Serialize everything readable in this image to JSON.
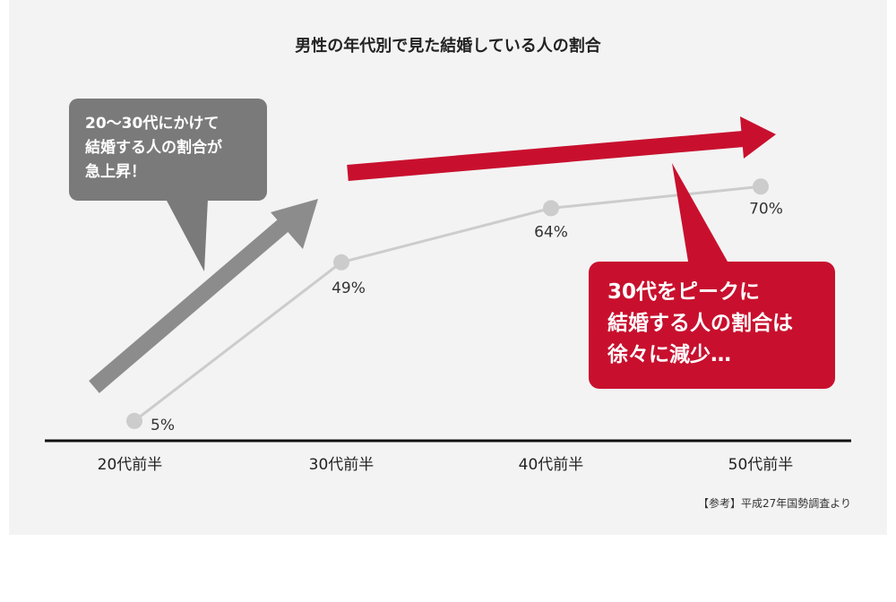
{
  "chart_data": {
    "type": "line",
    "title": "男性の年代別で見た結婚している人の割合",
    "categories": [
      "20代前半",
      "30代前半",
      "40代前半",
      "50代前半"
    ],
    "values": [
      5,
      49,
      64,
      70
    ],
    "data_labels": [
      "5%",
      "49%",
      "64%",
      "70%"
    ],
    "ylim": [
      0,
      80
    ],
    "grid": false,
    "series_color": "#cccccc",
    "annotations": [
      {
        "lines": [
          "20〜30代にかけて",
          "結婚する人の割合が",
          "急上昇！"
        ],
        "color": "#7a7a7a"
      },
      {
        "lines": [
          "30代をピークに",
          "結婚する人の割合は",
          "徐々に減少…"
        ],
        "color": "#c8102e"
      }
    ],
    "source": "【参考】平成27年国勢調査より"
  },
  "colors": {
    "background_panel": "#f3f3f3",
    "gray_arrow": "#8c8c8c",
    "red_arrow": "#c8102e",
    "axis": "#111111"
  }
}
